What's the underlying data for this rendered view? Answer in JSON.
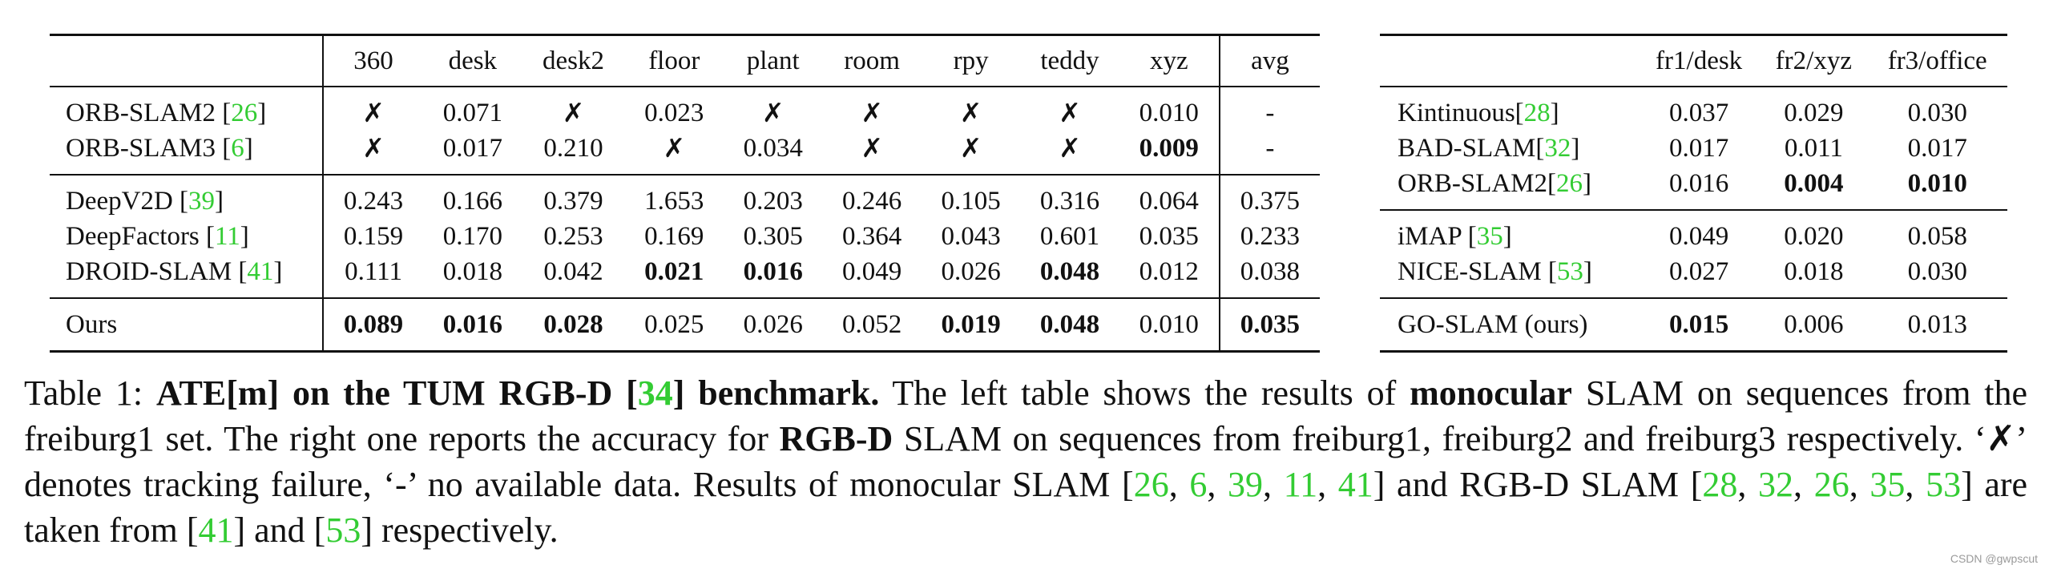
{
  "left_table": {
    "header": [
      "360",
      "desk",
      "desk2",
      "floor",
      "plant",
      "room",
      "rpy",
      "teddy",
      "xyz",
      "avg"
    ],
    "groups": [
      {
        "rows": [
          {
            "method": "ORB-SLAM2 [",
            "cite": "26",
            "close": "]",
            "values": [
              "✗",
              "0.071",
              "✗",
              "0.023",
              "✗",
              "✗",
              "✗",
              "✗",
              "0.010",
              "-"
            ]
          },
          {
            "method": "ORB-SLAM3 [",
            "cite": "6",
            "close": "]",
            "values": [
              "✗",
              "0.017",
              "0.210",
              "✗",
              "0.034",
              "✗",
              "✗",
              "✗",
              "0.009",
              "-"
            ]
          }
        ]
      },
      {
        "rows": [
          {
            "method": "DeepV2D [",
            "cite": "39",
            "close": "]",
            "values": [
              "0.243",
              "0.166",
              "0.379",
              "1.653",
              "0.203",
              "0.246",
              "0.105",
              "0.316",
              "0.064",
              "0.375"
            ]
          },
          {
            "method": "DeepFactors [",
            "cite": "11",
            "close": "]",
            "values": [
              "0.159",
              "0.170",
              "0.253",
              "0.169",
              "0.305",
              "0.364",
              "0.043",
              "0.601",
              "0.035",
              "0.233"
            ]
          },
          {
            "method": "DROID-SLAM [",
            "cite": "41",
            "close": "]",
            "values": [
              "0.111",
              "0.018",
              "0.042",
              "0.021",
              "0.016",
              "0.049",
              "0.026",
              "0.048",
              "0.012",
              "0.038"
            ]
          }
        ]
      },
      {
        "rows": [
          {
            "method": "Ours",
            "cite": "",
            "close": "",
            "values": [
              "0.089",
              "0.016",
              "0.028",
              "0.025",
              "0.026",
              "0.052",
              "0.019",
              "0.048",
              "0.010",
              "0.035"
            ]
          }
        ]
      }
    ]
  },
  "right_table": {
    "header": [
      "fr1/desk",
      "fr2/xyz",
      "fr3/office"
    ],
    "groups": [
      {
        "rows": [
          {
            "method": "Kintinuous[",
            "cite": "28",
            "close": "]",
            "values": [
              "0.037",
              "0.029",
              "0.030"
            ]
          },
          {
            "method": "BAD-SLAM[",
            "cite": "32",
            "close": "]",
            "values": [
              "0.017",
              "0.011",
              "0.017"
            ]
          },
          {
            "method": "ORB-SLAM2[",
            "cite": "26",
            "close": "]",
            "values": [
              "0.016",
              "0.004",
              "0.010"
            ]
          }
        ]
      },
      {
        "rows": [
          {
            "method": "iMAP [",
            "cite": "35",
            "close": "]",
            "values": [
              "0.049",
              "0.020",
              "0.058"
            ]
          },
          {
            "method": "NICE-SLAM [",
            "cite": "53",
            "close": "]",
            "values": [
              "0.027",
              "0.018",
              "0.030"
            ]
          }
        ]
      },
      {
        "rows": [
          {
            "method": "GO-SLAM (ours)",
            "cite": "",
            "close": "",
            "values": [
              "0.015",
              "0.006",
              "0.013"
            ]
          }
        ]
      }
    ]
  },
  "caption": {
    "label": "Table 1:",
    "bold_title_a": "ATE[m] on the TUM RGB-D [",
    "bold_title_cite": "34",
    "bold_title_b": "] benchmark.",
    "t1": "The left table shows the results of",
    "bold_monocular": "monocular",
    "t2": "SLAM on sequences from the freiburg1 set. The right one reports the accuracy for",
    "bold_rgbd": "RGB-D",
    "t3": "SLAM on sequences from freiburg1, freiburg2 and freiburg3 respectively. ‘✗’ denotes tracking failure, ‘-’ no available data. Results of monocular SLAM [",
    "c1": "26",
    "c2": "6",
    "c3": "39",
    "c4": "11",
    "c5": "41",
    "t4": "] and RGB-D SLAM [",
    "c6": "28",
    "c7": "32",
    "c8": "26",
    "c9": "35",
    "c10": "53",
    "t5": "] are taken from [",
    "c11": "41",
    "t6": "] and [",
    "c12": "53",
    "t7": "] respectively."
  },
  "watermark": "CSDN @gwpscut"
}
